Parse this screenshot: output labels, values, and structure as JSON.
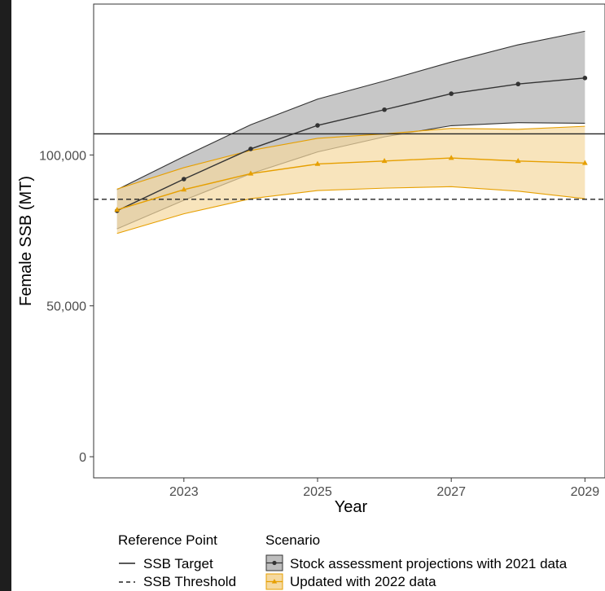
{
  "chart_data": {
    "type": "line",
    "xlabel": "Year",
    "ylabel": "Female SSB (MT)",
    "xlim": [
      2021.65,
      2029.3
    ],
    "ylim": [
      -7000,
      150000
    ],
    "x_ticks": [
      2023,
      2025,
      2027,
      2029
    ],
    "x_tick_labels": [
      "2023",
      "2025",
      "2027",
      "2029"
    ],
    "y_ticks": [
      0,
      50000,
      100000
    ],
    "y_tick_labels": [
      "0",
      "50,000",
      "100,000"
    ],
    "grid": false,
    "x": [
      2022,
      2023,
      2024,
      2025,
      2026,
      2027,
      2028,
      2029
    ],
    "series": [
      {
        "name": "Stock assessment projections with 2021 data",
        "color": "#333333",
        "fill": "#bdbdbd",
        "marker": "circle",
        "values": [
          81500,
          92000,
          102000,
          109800,
          115000,
          120300,
          123500,
          125500
        ],
        "lower": [
          75500,
          85000,
          93800,
          101000,
          106000,
          109700,
          110700,
          110500
        ],
        "upper": [
          88500,
          99500,
          110000,
          118500,
          124500,
          130800,
          136500,
          141000
        ]
      },
      {
        "name": "Updated with 2022 data",
        "color": "#e69f00",
        "fill": "#f5d9a0",
        "marker": "triangle",
        "values": [
          81800,
          88500,
          93800,
          97000,
          98000,
          99000,
          98000,
          97300
        ],
        "lower": [
          74000,
          80500,
          85500,
          88200,
          89000,
          89500,
          88000,
          85500
        ],
        "upper": [
          88700,
          95800,
          101500,
          105500,
          107000,
          108800,
          108500,
          109500
        ]
      }
    ],
    "reference_lines": [
      {
        "name": "SSB Target",
        "value": 107000,
        "style": "solid",
        "color": "#222222"
      },
      {
        "name": "SSB Threshold",
        "value": 85300,
        "style": "dashed",
        "color": "#222222"
      }
    ],
    "legend": {
      "placement": "bottom",
      "reference_title": "Reference Point",
      "scenario_title": "Scenario"
    }
  }
}
